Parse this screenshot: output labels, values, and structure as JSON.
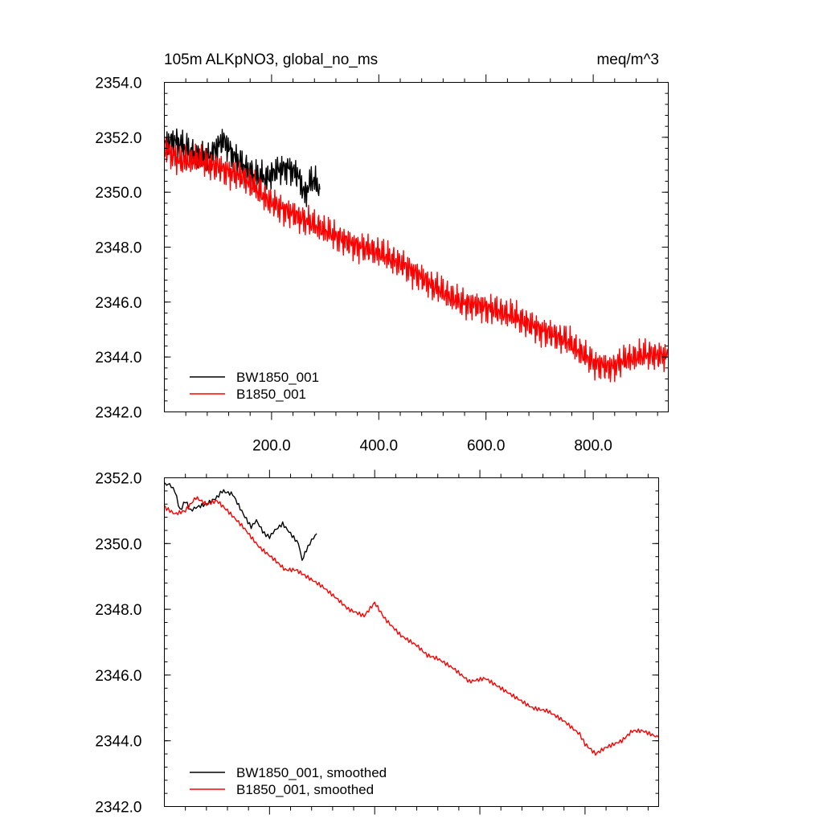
{
  "chart_data": [
    {
      "type": "line",
      "title": "105m ALKpNO3, global_no_ms",
      "units": "meq/m^3",
      "xlim": [
        0,
        940
      ],
      "ylim": [
        2342,
        2354
      ],
      "x_ticks": [
        "200.0",
        "400.0",
        "600.0",
        "800.0"
      ],
      "y_ticks": [
        "2354.0",
        "2352.0",
        "2350.0",
        "2348.0",
        "2346.0",
        "2344.0",
        "2342.0"
      ],
      "series": [
        {
          "name": "BW1850_001",
          "color": "#000000",
          "x": [
            1,
            20,
            40,
            60,
            80,
            100,
            110,
            130,
            150,
            170,
            190,
            210,
            230,
            250,
            262,
            275,
            290
          ],
          "y": [
            2351.7,
            2351.9,
            2351.6,
            2351.3,
            2351.2,
            2351.7,
            2351.9,
            2351.3,
            2350.9,
            2350.6,
            2350.5,
            2350.8,
            2350.9,
            2350.6,
            2349.9,
            2350.5,
            2350.1
          ]
        },
        {
          "name": "B1850_001",
          "color": "#ff0000",
          "x": [
            1,
            30,
            60,
            100,
            150,
            200,
            250,
            300,
            350,
            400,
            450,
            500,
            550,
            600,
            650,
            700,
            750,
            800,
            830,
            860,
            900,
            940
          ],
          "y": [
            2351.6,
            2351.1,
            2351.2,
            2350.9,
            2350.5,
            2349.6,
            2349.1,
            2348.6,
            2348.1,
            2347.8,
            2347.3,
            2346.6,
            2346.0,
            2345.8,
            2345.5,
            2345.0,
            2344.6,
            2343.8,
            2343.6,
            2343.9,
            2344.1,
            2344.0
          ]
        }
      ]
    },
    {
      "type": "line",
      "xlim": [
        0,
        940
      ],
      "ylim": [
        2342,
        2352
      ],
      "x_ticks": [],
      "y_ticks": [
        "2352.0",
        "2350.0",
        "2348.0",
        "2346.0",
        "2344.0",
        "2342.0"
      ],
      "series": [
        {
          "name": "BW1850_001, smoothed",
          "color": "#000000",
          "x": [
            1,
            10,
            20,
            30,
            40,
            50,
            60,
            80,
            100,
            110,
            130,
            150,
            165,
            175,
            190,
            200,
            210,
            225,
            240,
            255,
            262,
            270,
            280,
            290
          ],
          "y": [
            2351.8,
            2351.8,
            2351.6,
            2351.0,
            2351.3,
            2351.0,
            2351.1,
            2351.2,
            2351.4,
            2351.6,
            2351.5,
            2350.9,
            2350.5,
            2350.7,
            2350.3,
            2350.2,
            2350.4,
            2350.6,
            2350.3,
            2350.0,
            2349.5,
            2349.8,
            2350.1,
            2350.3
          ]
        },
        {
          "name": "B1850_001, smoothed",
          "color": "#ff0000",
          "x": [
            1,
            20,
            40,
            60,
            80,
            100,
            120,
            150,
            180,
            210,
            230,
            250,
            270,
            300,
            330,
            350,
            380,
            400,
            420,
            450,
            480,
            500,
            520,
            550,
            580,
            610,
            640,
            670,
            700,
            730,
            760,
            790,
            800,
            820,
            840,
            870,
            890,
            910,
            925,
            940
          ],
          "y": [
            2351.1,
            2350.9,
            2351.0,
            2351.4,
            2351.2,
            2351.3,
            2351.0,
            2350.5,
            2349.9,
            2349.5,
            2349.2,
            2349.2,
            2349.0,
            2348.7,
            2348.3,
            2348.0,
            2347.8,
            2348.2,
            2347.7,
            2347.2,
            2346.9,
            2346.6,
            2346.5,
            2346.2,
            2345.8,
            2345.9,
            2345.6,
            2345.3,
            2345.0,
            2344.9,
            2344.6,
            2344.2,
            2343.9,
            2343.6,
            2343.8,
            2344.0,
            2344.3,
            2344.3,
            2344.2,
            2344.1
          ]
        }
      ]
    }
  ]
}
